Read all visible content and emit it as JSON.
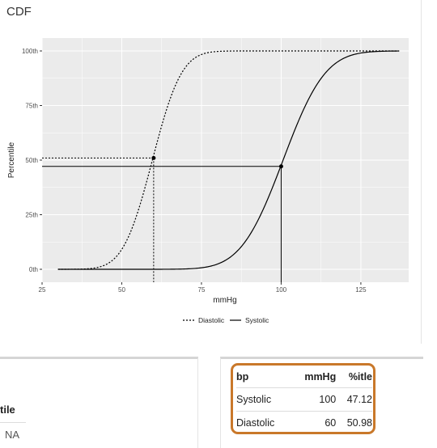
{
  "card": {
    "title": "CDF"
  },
  "chart_data": {
    "type": "line",
    "xlabel": "mmHg",
    "ylabel": "Percentile",
    "xlim": [
      25,
      140
    ],
    "ylim": [
      0,
      100
    ],
    "x_ticks": [
      25,
      50,
      75,
      100,
      125
    ],
    "y_ticks": [
      0,
      25,
      50,
      75,
      100
    ],
    "y_tick_labels": [
      "0th",
      "25th",
      "50th",
      "75th",
      "100th"
    ],
    "grid": true,
    "legend_position": "bottom",
    "series": [
      {
        "name": "Diastolic",
        "style": "dotted",
        "mean": 59.6,
        "sd": 7.2,
        "x_range": [
          30,
          137
        ]
      },
      {
        "name": "Systolic",
        "style": "solid",
        "mean": 100.6,
        "sd": 10.4,
        "x_range": [
          30,
          137
        ]
      }
    ],
    "reference_points": [
      {
        "series": "Diastolic",
        "x": 60,
        "y": 50.98
      },
      {
        "series": "Systolic",
        "x": 100,
        "y": 47.12
      }
    ],
    "colors": {
      "panel": "#ebebeb",
      "grid": "#ffffff",
      "line": "#000000"
    }
  },
  "left_panel": {
    "header": "tile",
    "cell": "NA"
  },
  "table": {
    "columns": [
      "bp",
      "mmHg",
      "%itle"
    ],
    "rows": [
      [
        "Systolic",
        "100",
        "47.12"
      ],
      [
        "Diastolic",
        "60",
        "50.98"
      ]
    ],
    "highlight_color": "#c9782a"
  }
}
